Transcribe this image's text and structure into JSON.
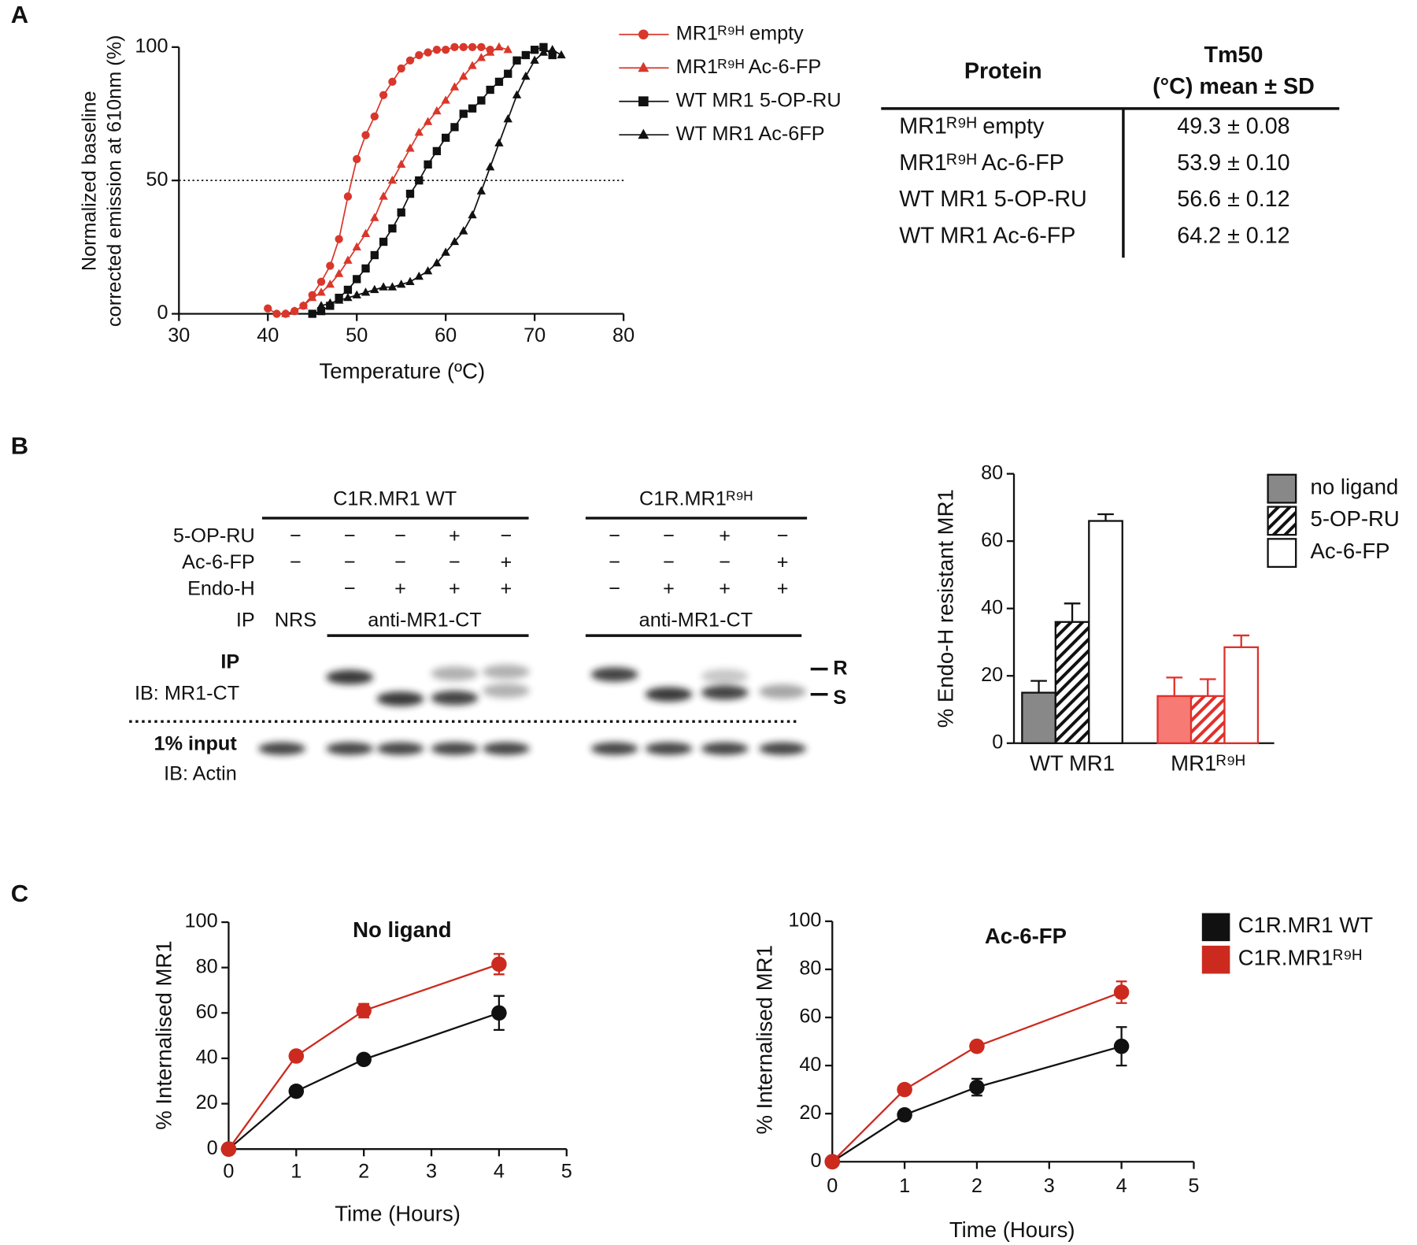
{
  "panel_labels": [
    "A",
    "B",
    "C"
  ],
  "tm_table": {
    "header": {
      "protein": "Protein",
      "tm50": [
        "Tm50",
        "(°C) mean ± SD"
      ]
    },
    "rows": [
      [
        "MR1ᴿ⁹ᴴ empty",
        "49.3 ± 0.08"
      ],
      [
        "MR1ᴿ⁹ᴴ Ac-6-FP",
        "53.9 ± 0.10"
      ],
      [
        "WT MR1 5-OP-RU",
        "56.6 ± 0.12"
      ],
      [
        "WT MR1 Ac-6-FP",
        "64.2 ± 0.12"
      ]
    ]
  },
  "blot": {
    "groups": [
      "C1R.MR1 WT",
      "C1R.MR1ᴿ⁹ᴴ"
    ],
    "treatment_rows": [
      {
        "label": "5-OP-RU",
        "cells": [
          "−",
          "−",
          "−",
          "+",
          "−",
          "−",
          "−",
          "+",
          "−"
        ]
      },
      {
        "label": "Ac-6-FP",
        "cells": [
          "−",
          "−",
          "−",
          "−",
          "+",
          "−",
          "−",
          "−",
          "+"
        ]
      },
      {
        "label": "Endo-H",
        "cells": [
          null,
          "−",
          "+",
          "+",
          "+",
          "−",
          "+",
          "+",
          "+"
        ]
      }
    ],
    "ip_row": {
      "label": "IP",
      "items": [
        "NRS",
        "anti-MR1-CT",
        "anti-MR1-CT"
      ]
    },
    "ip_panel": {
      "label": "IP",
      "antibody": "IB: MR1-CT"
    },
    "input_panel": {
      "label": "1% input",
      "antibody": "IB: Actin"
    },
    "band_labels": [
      "R",
      "S"
    ]
  },
  "chart_data": [
    {
      "type": "line",
      "xlabel": "Temperature  (ºC)",
      "ylabel": [
        "Normalized baseline",
        "corrected emission at 610nm (%)"
      ],
      "xlim": [
        30,
        80
      ],
      "xticks": [
        30,
        40,
        50,
        60,
        70,
        80
      ],
      "ylim": [
        0,
        100
      ],
      "yticks": [
        0,
        50,
        100
      ],
      "hline": 50,
      "series": [
        {
          "name": "MR1ᴿ⁹ᴴ empty",
          "color": "#d9372b",
          "marker": "circle",
          "x": [
            40,
            41,
            42,
            43,
            44,
            45,
            46,
            47,
            48,
            49,
            50,
            51,
            52,
            53,
            54,
            55,
            56,
            57,
            58,
            59,
            60,
            61,
            62,
            63,
            64,
            65
          ],
          "values": [
            2,
            0,
            0,
            1,
            3,
            7,
            12,
            18,
            28,
            44,
            58,
            67,
            74,
            82,
            87,
            92,
            95,
            97,
            98,
            99,
            99,
            100,
            100,
            100,
            100,
            99
          ]
        },
        {
          "name": "MR1ᴿ⁹ᴴ Ac-6-FP",
          "color": "#d9372b",
          "marker": "triangle",
          "x": [
            42,
            43,
            44,
            45,
            46,
            47,
            48,
            49,
            50,
            51,
            52,
            53,
            54,
            55,
            56,
            57,
            58,
            59,
            60,
            61,
            62,
            63,
            64,
            65,
            66,
            67
          ],
          "values": [
            0,
            1,
            3,
            6,
            8,
            11,
            15,
            20,
            25,
            30,
            36,
            44,
            50,
            56,
            62,
            68,
            72,
            76,
            80,
            85,
            89,
            93,
            96,
            98,
            100,
            99
          ]
        },
        {
          "name": "WT MR1 5-OP-RU",
          "color": "#111111",
          "marker": "square",
          "x": [
            45,
            46,
            47,
            48,
            49,
            50,
            51,
            52,
            53,
            54,
            55,
            56,
            57,
            58,
            59,
            60,
            61,
            62,
            63,
            64,
            65,
            66,
            67,
            68,
            69,
            70,
            71,
            72
          ],
          "values": [
            0,
            1,
            3,
            6,
            9,
            13,
            17,
            22,
            27,
            32,
            38,
            45,
            50,
            56,
            61,
            66,
            70,
            75,
            77,
            80,
            84,
            87,
            90,
            95,
            97,
            99,
            100,
            97
          ]
        },
        {
          "name": "WT MR1 Ac-6FP",
          "color": "#111111",
          "marker": "triangle",
          "x": [
            46,
            47,
            48,
            49,
            50,
            51,
            52,
            53,
            54,
            55,
            56,
            57,
            58,
            59,
            60,
            61,
            62,
            63,
            64,
            65,
            66,
            67,
            68,
            69,
            70,
            71,
            72,
            73
          ],
          "values": [
            3,
            4,
            5,
            6,
            7,
            8,
            9,
            10,
            10,
            11,
            12,
            14,
            16,
            19,
            23,
            27,
            31,
            37,
            46,
            55,
            64,
            73,
            82,
            89,
            95,
            98,
            99,
            97
          ]
        }
      ]
    },
    {
      "type": "bar",
      "ylabel": "% Endo-H resistant MR1",
      "categories": [
        "WT MR1",
        "MR1ᴿ⁹ᴴ"
      ],
      "ylim": [
        0,
        80
      ],
      "yticks": [
        0,
        20,
        40,
        60,
        80
      ],
      "edge_colors": [
        "#111111",
        "#e0302a"
      ],
      "series": [
        {
          "name": "no ligand",
          "style": "solid",
          "colors": [
            "#888888",
            "#f77b74"
          ],
          "values": [
            15,
            14
          ],
          "errors": [
            3.5,
            5.5
          ]
        },
        {
          "name": "5-OP-RU",
          "style": "hatch",
          "colors": [
            "#111111",
            "#e0302a"
          ],
          "values": [
            36,
            14
          ],
          "errors": [
            5.5,
            5
          ]
        },
        {
          "name": "Ac-6-FP",
          "style": "open",
          "colors": [
            "#ffffff",
            "#ffffff"
          ],
          "values": [
            66,
            28.5
          ],
          "errors": [
            2,
            3.5
          ]
        }
      ]
    },
    {
      "type": "line",
      "title": "No ligand",
      "xlabel": "Time (Hours)",
      "ylabel": "% Internalised MR1",
      "x": [
        0,
        1,
        2,
        4
      ],
      "xlim": [
        0,
        5
      ],
      "xticks": [
        0,
        1,
        2,
        3,
        4,
        5
      ],
      "ylim": [
        0,
        100
      ],
      "yticks": [
        0,
        20,
        40,
        60,
        80,
        100
      ],
      "series": [
        {
          "color": "#111111",
          "marker": "circle",
          "values": [
            0,
            25.5,
            39.5,
            60
          ],
          "errors": [
            0,
            1,
            1,
            7.5
          ]
        },
        {
          "color": "#cc2a1e",
          "marker": "circle",
          "values": [
            0,
            41,
            61,
            81.5
          ],
          "errors": [
            0,
            1,
            3,
            4.5
          ]
        }
      ]
    },
    {
      "type": "line",
      "title": "Ac-6-FP",
      "xlabel": "Time (Hours)",
      "ylabel": "% Internalised MR1",
      "x": [
        0,
        1,
        2,
        4
      ],
      "xlim": [
        0,
        5
      ],
      "xticks": [
        0,
        1,
        2,
        3,
        4,
        5
      ],
      "ylim": [
        0,
        100
      ],
      "yticks": [
        0,
        20,
        40,
        60,
        80,
        100
      ],
      "series": [
        {
          "name": "C1R.MR1 WT",
          "color": "#111111",
          "marker": "circle",
          "values": [
            0,
            19.5,
            31,
            48
          ],
          "errors": [
            0,
            1,
            3.5,
            8
          ]
        },
        {
          "name": "C1R.MR1ᴿ⁹ᴴ",
          "color": "#cc2a1e",
          "marker": "circle",
          "values": [
            0,
            30,
            48,
            70.5
          ],
          "errors": [
            0,
            1,
            1,
            4.5
          ]
        }
      ]
    }
  ]
}
